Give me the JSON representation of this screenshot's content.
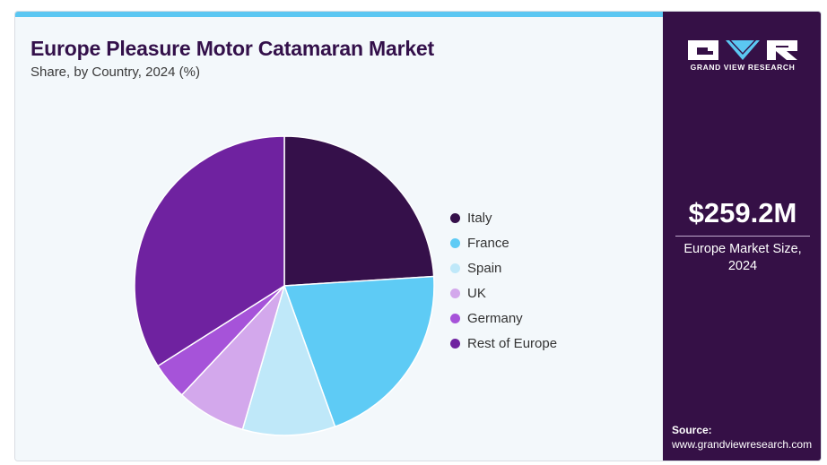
{
  "title": "Europe Pleasure Motor Catamaran Market",
  "subtitle": "Share, by Country, 2024 (%)",
  "side": {
    "brand": "GRAND VIEW RESEARCH",
    "market_value": "$259.2M",
    "market_label_line1": "Europe Market Size,",
    "market_label_line2": "2024",
    "source_label": "Source:",
    "source_url": "www.grandviewresearch.com"
  },
  "colors": {
    "accent_bar": "#5bc7f2",
    "sidebar": "#351046",
    "title": "#33104a"
  },
  "chart_data": {
    "type": "pie",
    "title": "Europe Pleasure Motor Catamaran Market",
    "subtitle": "Share, by Country, 2024 (%)",
    "legend_position": "right",
    "slices": [
      {
        "label": "Italy",
        "value": 24.0,
        "color": "#35104a"
      },
      {
        "label": "France",
        "value": 20.5,
        "color": "#5ecbf5"
      },
      {
        "label": "Spain",
        "value": 10.0,
        "color": "#bfe8f9"
      },
      {
        "label": "UK",
        "value": 7.5,
        "color": "#d3a8ec"
      },
      {
        "label": "Germany",
        "value": 4.0,
        "color": "#a653d9"
      },
      {
        "label": "Rest of Europe",
        "value": 34.0,
        "color": "#6f22a0"
      }
    ]
  }
}
